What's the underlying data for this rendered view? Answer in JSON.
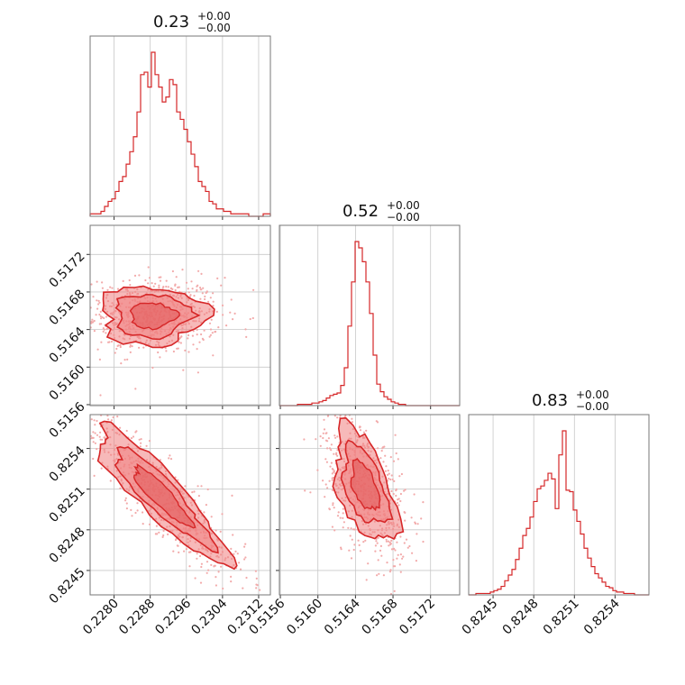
{
  "chart_data": {
    "type": "corner",
    "color": "#d62728",
    "titles": [
      {
        "value": "0.23",
        "plus": "+0.00",
        "minus": "−0.00"
      },
      {
        "value": "0.52",
        "plus": "+0.00",
        "minus": "−0.00"
      },
      {
        "value": "0.83",
        "plus": "+0.00",
        "minus": "−0.00"
      }
    ],
    "params": [
      {
        "range": [
          0.22747,
          0.23146
        ],
        "ticks": [
          0.228,
          0.2288,
          0.2296,
          0.2304,
          0.2312
        ],
        "tick_labels": [
          "0.2280",
          "0.2288",
          "0.2296",
          "0.2304",
          "0.2312"
        ]
      },
      {
        "range": [
          0.51559,
          0.51751
        ],
        "ticks": [
          0.5156,
          0.516,
          0.5164,
          0.5168,
          0.5172
        ],
        "tick_labels": [
          "0.5156",
          "0.5160",
          "0.5164",
          "0.5168",
          "0.5172"
        ]
      },
      {
        "range": [
          0.82432,
          0.82565
        ],
        "ticks": [
          0.8245,
          0.8248,
          0.8251,
          0.8254
        ],
        "tick_labels": [
          "0.8245",
          "0.8248",
          "0.8251",
          "0.8254"
        ]
      }
    ],
    "histograms": [
      {
        "bins": 50,
        "counts": [
          1,
          1,
          1,
          2,
          4,
          6,
          7,
          10,
          14,
          16,
          21,
          26,
          32,
          42,
          57,
          58,
          52,
          66,
          57,
          52,
          46,
          48,
          55,
          53,
          42,
          39,
          35,
          30,
          25,
          20,
          14,
          12,
          10,
          6,
          5,
          3,
          3,
          2,
          2,
          1,
          1,
          1,
          1,
          1,
          0,
          0,
          0,
          0,
          1,
          1
        ]
      },
      {
        "bins": 50,
        "counts": [
          0,
          0,
          0,
          0,
          0,
          1,
          1,
          1,
          1,
          2,
          2,
          3,
          4,
          6,
          8,
          9,
          10,
          16,
          30,
          63,
          98,
          130,
          125,
          114,
          98,
          73,
          40,
          17,
          11,
          7,
          5,
          3,
          2,
          1,
          1,
          0,
          0,
          0,
          0,
          0,
          0,
          0,
          0,
          0,
          0,
          0,
          0,
          0,
          0,
          0
        ]
      },
      {
        "bins": 50,
        "counts": [
          0,
          0,
          1,
          1,
          1,
          1,
          2,
          3,
          4,
          6,
          10,
          14,
          18,
          25,
          33,
          42,
          47,
          55,
          66,
          75,
          77,
          81,
          86,
          82,
          61,
          99,
          116,
          74,
          73,
          60,
          52,
          43,
          33,
          26,
          20,
          15,
          12,
          9,
          6,
          5,
          3,
          2,
          2,
          1,
          1,
          1,
          0,
          0,
          0,
          0
        ]
      }
    ],
    "pairs": [
      {
        "x_param": 0,
        "y_param": 1,
        "center": [
          0.22885,
          0.51655
        ],
        "sigma": [
          0.00055,
          0.00015
        ],
        "rho": 0.0
      },
      {
        "x_param": 0,
        "y_param": 2,
        "center": [
          0.22905,
          0.82505
        ],
        "sigma": [
          0.0007,
          0.00024
        ],
        "rho": -0.9
      },
      {
        "x_param": 1,
        "y_param": 2,
        "center": [
          0.5165,
          0.82512
        ],
        "sigma": [
          0.00016,
          0.0002
        ],
        "rho": -0.5
      }
    ]
  }
}
